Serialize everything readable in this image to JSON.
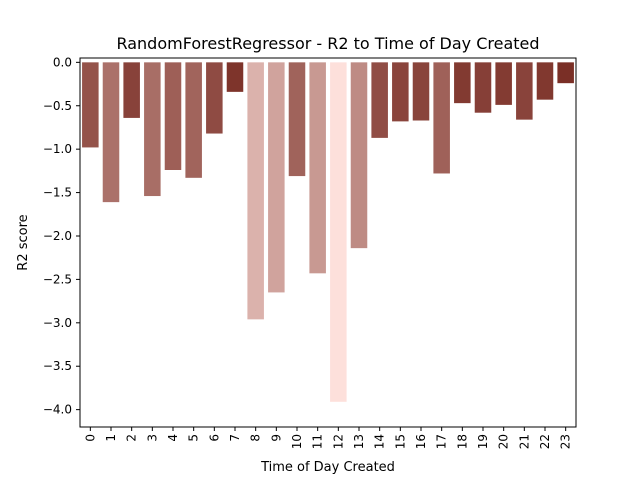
{
  "chart_data": {
    "type": "bar",
    "title": "RandomForestRegressor - R2 to Time of Day Created",
    "xlabel": "Time of Day Created",
    "ylabel": "R2 score",
    "categories": [
      "0",
      "1",
      "2",
      "3",
      "4",
      "5",
      "6",
      "7",
      "8",
      "9",
      "10",
      "11",
      "12",
      "13",
      "14",
      "15",
      "16",
      "17",
      "18",
      "19",
      "20",
      "21",
      "22",
      "23"
    ],
    "values": [
      -0.98,
      -1.61,
      -0.64,
      -1.54,
      -1.24,
      -1.33,
      -0.82,
      -0.34,
      -2.96,
      -2.65,
      -1.31,
      -2.43,
      -3.91,
      -2.14,
      -0.87,
      -0.68,
      -0.67,
      -1.28,
      -0.47,
      -0.58,
      -0.49,
      -0.66,
      -0.43,
      -0.24
    ],
    "ylim": [
      -4.2,
      0.05
    ],
    "yticks": [
      0.0,
      -0.5,
      -1.0,
      -1.5,
      -2.0,
      -2.5,
      -3.0,
      -3.5,
      -4.0
    ],
    "ytick_labels": [
      "0.0",
      "−0.5",
      "−1.0",
      "−1.5",
      "−2.0",
      "−2.5",
      "−3.0",
      "−3.5",
      "−4.0"
    ],
    "grid": false,
    "legend": "none",
    "colors": {
      "light": "#fde0db",
      "dark": "#7a2f26",
      "axis": "#000000",
      "background": "#ffffff"
    }
  }
}
